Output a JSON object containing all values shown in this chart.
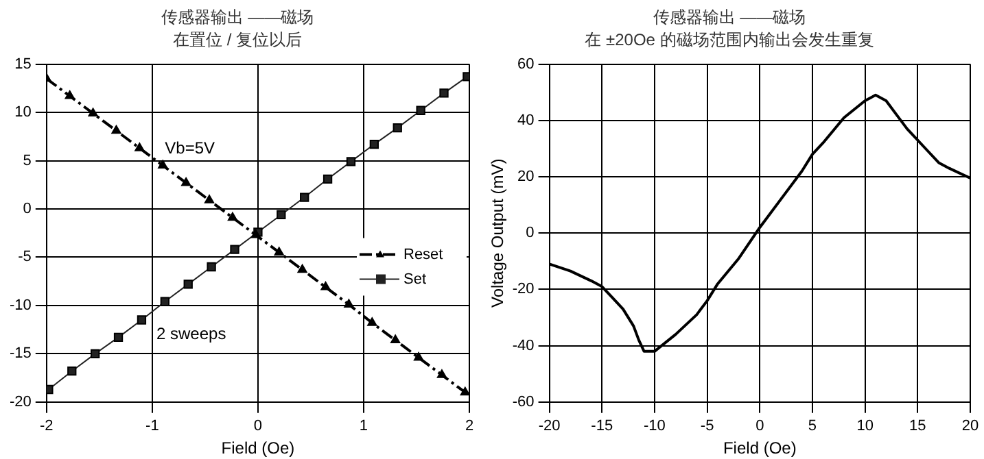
{
  "chart_data": [
    {
      "type": "line",
      "title": "传感器输出 ——磁场",
      "subtitle": "在置位 / 复位以后",
      "xlabel": "Field (Oe)",
      "xlim": [
        -2,
        2
      ],
      "xticks": [
        -2,
        -1,
        0,
        1,
        2
      ],
      "ylim": [
        -20,
        15
      ],
      "yticks": [
        -20,
        -15,
        -10,
        -5,
        0,
        5,
        10,
        15
      ],
      "grid": true,
      "legend": "right",
      "annotations": [
        "Vb=5V",
        "2 sweeps"
      ],
      "series": [
        {
          "name": "Reset",
          "color": "#000000",
          "marker": "triangle",
          "line_style": "dashed",
          "x": [
            -2,
            -1.78,
            -1.56,
            -1.34,
            -1.12,
            -0.9,
            -0.68,
            -0.46,
            -0.24,
            -0.02,
            0.2,
            0.42,
            0.64,
            0.86,
            1.08,
            1.3,
            1.52,
            1.74,
            1.96
          ],
          "values": [
            13.5,
            11.7,
            9.9,
            8.1,
            6.3,
            4.5,
            2.7,
            0.9,
            -0.9,
            -2.7,
            -4.5,
            -6.3,
            -8.1,
            -9.9,
            -11.8,
            -13.6,
            -15.4,
            -17.2,
            -19
          ]
        },
        {
          "name": "Set",
          "color": "#222222",
          "marker": "square",
          "line_style": "solid",
          "x": [
            -1.98,
            -1.76,
            -1.54,
            -1.32,
            -1.1,
            -0.88,
            -0.66,
            -0.44,
            -0.22,
            0,
            0.22,
            0.44,
            0.66,
            0.88,
            1.1,
            1.32,
            1.54,
            1.76,
            1.98
          ],
          "values": [
            -18.7,
            -16.8,
            -15,
            -13.3,
            -11.5,
            -9.6,
            -7.8,
            -6,
            -4.2,
            -2.4,
            -0.6,
            1.2,
            3.1,
            4.9,
            6.7,
            8.4,
            10.2,
            12,
            13.7
          ]
        }
      ]
    },
    {
      "type": "line",
      "title": "传感器输出 ——磁场",
      "subtitle": "在 ±20Oe 的磁场范围内输出会发生重复",
      "xlabel": "Field (Oe)",
      "ylabel": "Voltage Output (mV)",
      "xlim": [
        -20,
        20
      ],
      "xticks": [
        -20,
        -15,
        -10,
        -5,
        0,
        5,
        10,
        15,
        20
      ],
      "ylim": [
        -60,
        60
      ],
      "yticks": [
        -60,
        -40,
        -20,
        0,
        20,
        40,
        60
      ],
      "grid": true,
      "marker": "none",
      "line_style": "solid",
      "series": [
        {
          "color": "#000000",
          "x": [
            -20,
            -18,
            -16,
            -15,
            -14,
            -13,
            -12,
            -11.5,
            -11,
            -10,
            -8,
            -6,
            -5,
            -4,
            -2,
            0,
            2,
            4,
            5,
            6,
            8,
            10,
            11,
            12,
            13,
            14,
            16,
            17,
            18,
            20
          ],
          "values": [
            -11,
            -13.5,
            -17,
            -19,
            -23,
            -27,
            -33,
            -38,
            -42,
            -42,
            -36,
            -29,
            -24,
            -18,
            -9,
            2,
            12,
            22,
            28,
            32,
            41,
            47,
            49,
            47,
            42,
            37,
            29,
            25,
            23,
            19.5
          ]
        }
      ]
    }
  ]
}
